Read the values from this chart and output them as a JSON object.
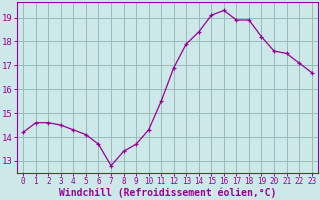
{
  "hours": [
    0,
    1,
    2,
    3,
    4,
    5,
    6,
    7,
    8,
    9,
    10,
    11,
    12,
    13,
    14,
    15,
    16,
    17,
    18,
    19,
    20,
    21,
    22,
    23
  ],
  "windchill": [
    14.2,
    14.6,
    14.6,
    14.5,
    14.3,
    14.1,
    13.7,
    12.8,
    13.4,
    13.7,
    14.3,
    15.5,
    16.9,
    17.9,
    18.4,
    19.1,
    19.3,
    18.9,
    18.9,
    18.2,
    17.6,
    17.5,
    17.1,
    16.7
  ],
  "line_color": "#990099",
  "marker": "+",
  "bg_color": "#cce8e8",
  "grid_color": "#99bbbb",
  "xlabel": "Windchill (Refroidissement éolien,°C)",
  "ylabel_ticks": [
    13,
    14,
    15,
    16,
    17,
    18,
    19
  ],
  "ylim": [
    12.5,
    19.65
  ],
  "xlim": [
    -0.5,
    23.5
  ],
  "xtick_fontsize": 5.5,
  "ytick_fontsize": 6.5,
  "xlabel_fontsize": 7,
  "label_color": "#990099"
}
